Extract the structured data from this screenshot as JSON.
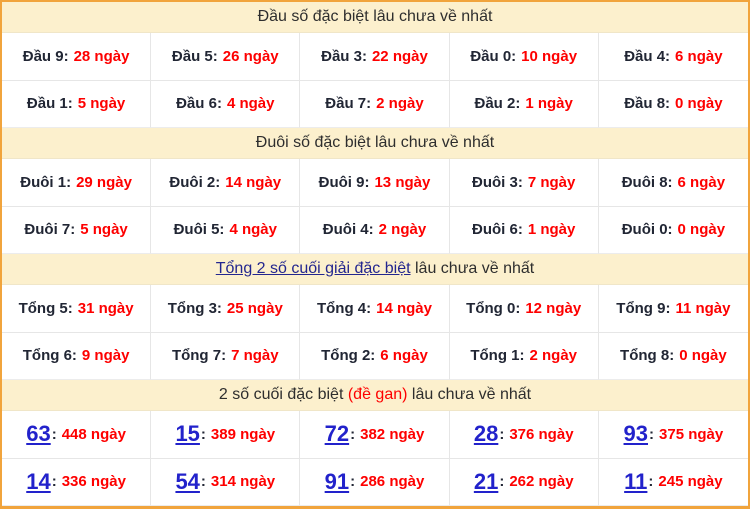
{
  "colors": {
    "accent_border": "#f1a43c",
    "header_bg": "#fcf0cd",
    "value_red": "#fe0000",
    "label_dark": "#212634",
    "header_link_navy": "#23268f",
    "number_link_blue": "#2222cb",
    "cell_border": "#e6e6e6"
  },
  "misc": {
    "colon": ":"
  },
  "sections": {
    "dau": {
      "title": "Đầu số đặc biệt lâu chưa về nhất",
      "rows": [
        [
          {
            "label": "Đầu 9:",
            "value": "28 ngày"
          },
          {
            "label": "Đầu 5:",
            "value": "26 ngày"
          },
          {
            "label": "Đầu 3:",
            "value": "22 ngày"
          },
          {
            "label": "Đầu 0:",
            "value": "10 ngày"
          },
          {
            "label": "Đầu 4:",
            "value": "6 ngày"
          }
        ],
        [
          {
            "label": "Đầu 1:",
            "value": "5 ngày"
          },
          {
            "label": "Đầu 6:",
            "value": "4 ngày"
          },
          {
            "label": "Đầu 7:",
            "value": "2 ngày"
          },
          {
            "label": "Đầu 2:",
            "value": "1 ngày"
          },
          {
            "label": "Đầu 8:",
            "value": "0 ngày"
          }
        ]
      ]
    },
    "duoi": {
      "title": "Đuôi số đặc biệt lâu chưa về nhất",
      "rows": [
        [
          {
            "label": "Đuôi 1:",
            "value": "29 ngày"
          },
          {
            "label": "Đuôi 2:",
            "value": "14 ngày"
          },
          {
            "label": "Đuôi 9:",
            "value": "13 ngày"
          },
          {
            "label": "Đuôi 3:",
            "value": "7 ngày"
          },
          {
            "label": "Đuôi 8:",
            "value": "6 ngày"
          }
        ],
        [
          {
            "label": "Đuôi 7:",
            "value": "5 ngày"
          },
          {
            "label": "Đuôi 5:",
            "value": "4 ngày"
          },
          {
            "label": "Đuôi 4:",
            "value": "2 ngày"
          },
          {
            "label": "Đuôi 6:",
            "value": "1 ngày"
          },
          {
            "label": "Đuôi 0:",
            "value": "0 ngày"
          }
        ]
      ]
    },
    "tong": {
      "title_link": "Tổng 2 số cuối giải đặc biệt",
      "title_suffix": " lâu chưa về nhất",
      "rows": [
        [
          {
            "label": "Tổng 5:",
            "value": "31 ngày"
          },
          {
            "label": "Tổng 3:",
            "value": "25 ngày"
          },
          {
            "label": "Tổng 4:",
            "value": "14 ngày"
          },
          {
            "label": "Tổng 0:",
            "value": "12 ngày"
          },
          {
            "label": "Tổng 9:",
            "value": "11 ngày"
          }
        ],
        [
          {
            "label": "Tổng 6:",
            "value": "9 ngày"
          },
          {
            "label": "Tổng 7:",
            "value": "7 ngày"
          },
          {
            "label": "Tổng 2:",
            "value": "6 ngày"
          },
          {
            "label": "Tổng 1:",
            "value": "2 ngày"
          },
          {
            "label": "Tổng 8:",
            "value": "0 ngày"
          }
        ]
      ]
    },
    "gan": {
      "title_prefix": "2 số cuối đặc biệt ",
      "title_highlight": "(đề gan)",
      "title_suffix": " lâu chưa về nhất",
      "rows": [
        [
          {
            "num": "63",
            "value": "448 ngày"
          },
          {
            "num": "15",
            "value": "389 ngày"
          },
          {
            "num": "72",
            "value": "382 ngày"
          },
          {
            "num": "28",
            "value": "376 ngày"
          },
          {
            "num": "93",
            "value": "375 ngày"
          }
        ],
        [
          {
            "num": "14",
            "value": "336 ngày"
          },
          {
            "num": "54",
            "value": "314 ngày"
          },
          {
            "num": "91",
            "value": "286 ngày"
          },
          {
            "num": "21",
            "value": "262 ngày"
          },
          {
            "num": "11",
            "value": "245 ngày"
          }
        ]
      ]
    }
  }
}
